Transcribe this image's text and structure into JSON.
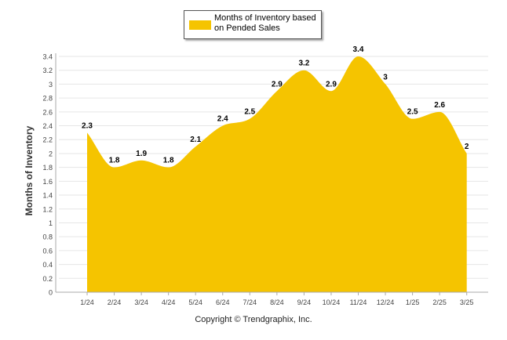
{
  "chart_data": {
    "type": "area",
    "categories": [
      "1/24",
      "2/24",
      "3/24",
      "4/24",
      "5/24",
      "6/24",
      "7/24",
      "8/24",
      "9/24",
      "10/24",
      "11/24",
      "12/24",
      "1/25",
      "2/25",
      "3/25"
    ],
    "series": [
      {
        "name": "Months of Inventory based on Pended Sales",
        "values": [
          2.3,
          1.8,
          1.9,
          1.8,
          2.1,
          2.4,
          2.5,
          2.9,
          3.2,
          2.9,
          3.4,
          3,
          2.5,
          2.6,
          2
        ]
      }
    ],
    "data_labels": [
      "2.3",
      "1.8",
      "1.9",
      "1.8",
      "2.1",
      "2.4",
      "2.5",
      "2.9",
      "3.2",
      "2.9",
      "3.4",
      "3",
      "2.5",
      "2.6",
      "2"
    ],
    "yticks": [
      0,
      0.2,
      0.4,
      0.6,
      0.8,
      1,
      1.2,
      1.4,
      1.6,
      1.8,
      2,
      2.2,
      2.4,
      2.6,
      2.8,
      3,
      3.2,
      3.4
    ],
    "ylim": [
      0,
      3.4
    ],
    "xlabel": "",
    "ylabel": "Months of Inventory",
    "grid": true,
    "legend_position": "top-center",
    "colors": {
      "fill": "#F5C400",
      "grid": "#e6e6e6",
      "axis": "#aaaaaa"
    }
  },
  "footer": {
    "copyright": "Copyright © Trendgraphix, Inc."
  }
}
